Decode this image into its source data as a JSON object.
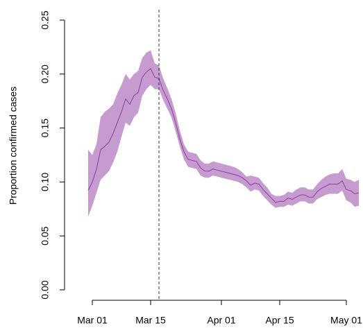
{
  "chart_data": {
    "type": "band-line",
    "y_label": "Proportion confirmed cases",
    "x": [
      "02-29",
      "03-01",
      "03-02",
      "03-03",
      "03-04",
      "03-05",
      "03-06",
      "03-07",
      "03-08",
      "03-09",
      "03-10",
      "03-11",
      "03-12",
      "03-13",
      "03-14",
      "03-15",
      "03-16",
      "03-17",
      "03-18",
      "03-19",
      "03-20",
      "03-21",
      "03-22",
      "03-23",
      "03-24",
      "03-25",
      "03-26",
      "03-27",
      "03-28",
      "03-29",
      "03-30",
      "03-31",
      "04-01",
      "04-02",
      "04-03",
      "04-04",
      "04-05",
      "04-06",
      "04-07",
      "04-08",
      "04-09",
      "04-10",
      "04-11",
      "04-12",
      "04-13",
      "04-14",
      "04-15",
      "04-16",
      "04-17",
      "04-18",
      "04-19",
      "04-20",
      "04-21",
      "04-22",
      "04-23",
      "04-24",
      "04-25",
      "04-26",
      "04-27",
      "04-28",
      "04-29",
      "04-30",
      "05-01",
      "05-02",
      "05-03",
      "05-04"
    ],
    "values": [
      0.092,
      0.1,
      0.112,
      0.13,
      0.133,
      0.137,
      0.145,
      0.155,
      0.165,
      0.177,
      0.172,
      0.18,
      0.183,
      0.197,
      0.202,
      0.205,
      0.197,
      0.196,
      0.185,
      0.177,
      0.168,
      0.155,
      0.14,
      0.128,
      0.121,
      0.12,
      0.119,
      0.113,
      0.11,
      0.11,
      0.112,
      0.111,
      0.11,
      0.109,
      0.108,
      0.107,
      0.106,
      0.104,
      0.101,
      0.097,
      0.099,
      0.098,
      0.093,
      0.089,
      0.085,
      0.081,
      0.082,
      0.082,
      0.085,
      0.084,
      0.086,
      0.088,
      0.088,
      0.086,
      0.086,
      0.091,
      0.094,
      0.096,
      0.098,
      0.098,
      0.098,
      0.101,
      0.093,
      0.092,
      0.089,
      0.09
    ],
    "lower": [
      0.068,
      0.078,
      0.09,
      0.102,
      0.106,
      0.11,
      0.118,
      0.128,
      0.142,
      0.155,
      0.152,
      0.16,
      0.164,
      0.18,
      0.186,
      0.19,
      0.186,
      0.186,
      0.176,
      0.168,
      0.16,
      0.147,
      0.133,
      0.121,
      0.114,
      0.113,
      0.112,
      0.106,
      0.104,
      0.104,
      0.106,
      0.105,
      0.104,
      0.103,
      0.102,
      0.101,
      0.1,
      0.098,
      0.095,
      0.091,
      0.093,
      0.092,
      0.087,
      0.083,
      0.079,
      0.076,
      0.077,
      0.077,
      0.079,
      0.078,
      0.08,
      0.082,
      0.082,
      0.08,
      0.08,
      0.084,
      0.086,
      0.088,
      0.089,
      0.089,
      0.089,
      0.092,
      0.083,
      0.081,
      0.077,
      0.078
    ],
    "upper": [
      0.13,
      0.125,
      0.135,
      0.16,
      0.165,
      0.168,
      0.172,
      0.182,
      0.19,
      0.2,
      0.195,
      0.2,
      0.203,
      0.215,
      0.22,
      0.222,
      0.21,
      0.208,
      0.196,
      0.187,
      0.177,
      0.164,
      0.148,
      0.135,
      0.128,
      0.127,
      0.126,
      0.12,
      0.117,
      0.117,
      0.119,
      0.118,
      0.117,
      0.116,
      0.115,
      0.114,
      0.112,
      0.109,
      0.105,
      0.106,
      0.105,
      0.104,
      0.099,
      0.095,
      0.089,
      0.087,
      0.087,
      0.088,
      0.091,
      0.09,
      0.093,
      0.095,
      0.095,
      0.093,
      0.093,
      0.098,
      0.102,
      0.105,
      0.107,
      0.108,
      0.108,
      0.112,
      0.103,
      0.102,
      0.1,
      0.102
    ],
    "color": "#8b3f9b",
    "band_color": "#c69bcf",
    "vline": "03-17",
    "xlim": [
      "03-01",
      "05-01"
    ],
    "xticks": [
      {
        "value": "03-01",
        "label": "Mar 01"
      },
      {
        "value": "03-15",
        "label": "Mar 15"
      },
      {
        "value": "04-01",
        "label": "Apr 01"
      },
      {
        "value": "04-15",
        "label": "Apr 15"
      },
      {
        "value": "05-01",
        "label": "May 01"
      }
    ],
    "ylim": [
      0,
      0.25
    ],
    "yticks": [
      {
        "value": 0,
        "label": "0.00"
      },
      {
        "value": 0.05,
        "label": "0.05"
      },
      {
        "value": 0.1,
        "label": "0.10"
      },
      {
        "value": 0.15,
        "label": "0.15"
      },
      {
        "value": 0.2,
        "label": "0.20"
      },
      {
        "value": 0.25,
        "label": "0.25"
      }
    ]
  }
}
